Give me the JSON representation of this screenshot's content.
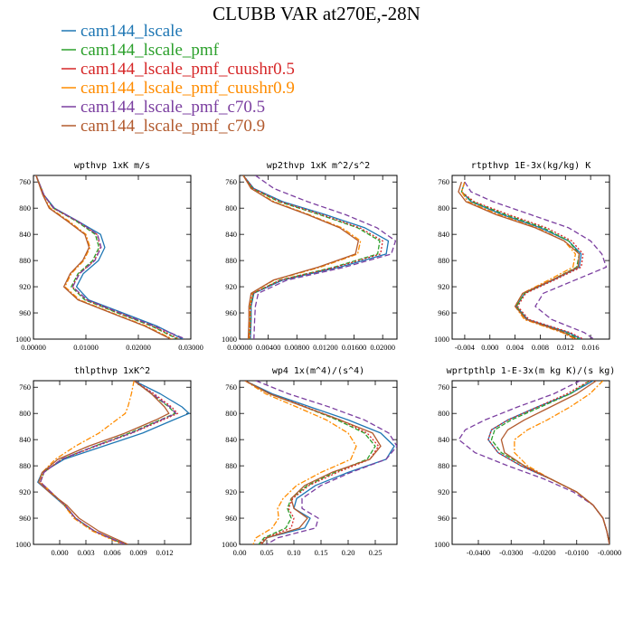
{
  "figure": {
    "title": "CLUBB VAR at270E,-28N"
  },
  "legend": [
    {
      "label": "cam144_lscale",
      "color": "#1f77b4",
      "dash": "none"
    },
    {
      "label": "cam144_lscale_pmf",
      "color": "#2ca02c",
      "dash": "5,2"
    },
    {
      "label": "cam144_lscale_pmf_cuushr0.5",
      "color": "#d62728",
      "dash": "2,2"
    },
    {
      "label": "cam144_lscale_pmf_cuushr0.9",
      "color": "#ff8c00",
      "dash": "6,2,2,2"
    },
    {
      "label": "cam144_lscale_pmf_c70.5",
      "color": "#7b3fa0",
      "dash": "6,3"
    },
    {
      "label": "cam144_lscale_pmf_c70.9",
      "color": "#b25a2e",
      "dash": "none"
    }
  ],
  "chart_data": [
    {
      "type": "line",
      "title": "wpthvp  1xK m/s",
      "xlim": [
        0,
        0.03
      ],
      "ylim": [
        750,
        1000
      ],
      "xticks": [
        0,
        0.01,
        0.02,
        0.03
      ],
      "xticklabels": [
        "0.00000",
        "0.01000",
        "0.02000",
        "0.03000"
      ],
      "yticks": [
        760,
        800,
        840,
        880,
        920,
        960,
        1000
      ],
      "yticklabels": [
        "760",
        "800",
        "840",
        "880",
        "920",
        "960",
        "1000"
      ],
      "levels": [
        750,
        780,
        800,
        820,
        840,
        860,
        880,
        900,
        920,
        940,
        960,
        980,
        1000
      ],
      "series": [
        {
          "name": "cam144_lscale",
          "values": [
            0.0005,
            0.002,
            0.004,
            0.0085,
            0.0128,
            0.0136,
            0.0124,
            0.0095,
            0.0082,
            0.0105,
            0.017,
            0.0235,
            0.0285
          ]
        },
        {
          "name": "cam144_lscale_pmf",
          "values": [
            0.0005,
            0.002,
            0.0038,
            0.0082,
            0.0118,
            0.0125,
            0.0113,
            0.0085,
            0.0072,
            0.0098,
            0.016,
            0.0225,
            0.0275
          ]
        },
        {
          "name": "cam144_lscale_pmf_cuushr0.5",
          "values": [
            0.0005,
            0.002,
            0.0038,
            0.0084,
            0.0121,
            0.0128,
            0.0116,
            0.0087,
            0.0074,
            0.0101,
            0.0163,
            0.0228,
            0.0278
          ]
        },
        {
          "name": "cam144_lscale_pmf_cuushr0.9",
          "values": [
            0.0005,
            0.0018,
            0.0032,
            0.0068,
            0.01,
            0.0108,
            0.0096,
            0.0072,
            0.006,
            0.0088,
            0.015,
            0.0215,
            0.0265
          ]
        },
        {
          "name": "cam144_lscale_pmf_c70.5",
          "values": [
            0.0005,
            0.002,
            0.0039,
            0.0085,
            0.0122,
            0.0129,
            0.0117,
            0.0088,
            0.0075,
            0.0102,
            0.0165,
            0.023,
            0.029
          ]
        },
        {
          "name": "cam144_lscale_pmf_c70.9",
          "values": [
            0.0005,
            0.0018,
            0.003,
            0.0065,
            0.0098,
            0.0106,
            0.0094,
            0.007,
            0.0058,
            0.0085,
            0.0148,
            0.0212,
            0.0262
          ]
        }
      ]
    },
    {
      "type": "line",
      "title": "wp2thvp  1xK m^2/s^2",
      "xlim": [
        0,
        0.022
      ],
      "ylim": [
        750,
        1000
      ],
      "xticks": [
        0,
        0.004,
        0.008,
        0.012,
        0.016,
        0.02
      ],
      "xticklabels": [
        "0.00000",
        "0.00400",
        "0.00800",
        "0.01200",
        "0.01600",
        "0.02000"
      ],
      "yticks": [
        760,
        800,
        840,
        880,
        920,
        960,
        1000
      ],
      "yticklabels": [
        "760",
        "800",
        "840",
        "880",
        "920",
        "960",
        "1000"
      ],
      "levels": [
        750,
        770,
        790,
        810,
        830,
        850,
        870,
        890,
        910,
        930,
        950,
        970,
        1000
      ],
      "series": [
        {
          "name": "cam144_lscale",
          "values": [
            0.0005,
            0.002,
            0.006,
            0.012,
            0.0175,
            0.0208,
            0.0205,
            0.014,
            0.006,
            0.002,
            0.0016,
            0.0016,
            0.0015
          ]
        },
        {
          "name": "cam144_lscale_pmf",
          "values": [
            0.0005,
            0.0018,
            0.0055,
            0.0112,
            0.0165,
            0.0196,
            0.0193,
            0.0132,
            0.0056,
            0.0019,
            0.0015,
            0.0015,
            0.0014
          ]
        },
        {
          "name": "cam144_lscale_pmf_cuushr0.5",
          "values": [
            0.0005,
            0.0019,
            0.0057,
            0.0115,
            0.0168,
            0.02,
            0.0197,
            0.0135,
            0.0057,
            0.0019,
            0.0015,
            0.0015,
            0.0014
          ]
        },
        {
          "name": "cam144_lscale_pmf_cuushr0.9",
          "values": [
            0.0005,
            0.0016,
            0.0048,
            0.0097,
            0.0143,
            0.0169,
            0.0165,
            0.0113,
            0.0048,
            0.0017,
            0.0014,
            0.0014,
            0.0013
          ]
        },
        {
          "name": "cam144_lscale_pmf_c70.5",
          "values": [
            0.0022,
            0.0048,
            0.0095,
            0.0148,
            0.0192,
            0.0218,
            0.0212,
            0.0147,
            0.0066,
            0.0026,
            0.0022,
            0.0021,
            0.002
          ]
        },
        {
          "name": "cam144_lscale_pmf_c70.9",
          "values": [
            0.0005,
            0.0016,
            0.0046,
            0.0095,
            0.014,
            0.0166,
            0.0162,
            0.011,
            0.0047,
            0.0016,
            0.0013,
            0.0013,
            0.0012
          ]
        }
      ]
    },
    {
      "type": "line",
      "title": "rtpthvp  1E-3x(kg/kg) K",
      "xlim": [
        -0.006,
        0.019
      ],
      "ylim": [
        750,
        1000
      ],
      "xticks": [
        -0.004,
        0,
        0.004,
        0.008,
        0.012,
        0.016
      ],
      "xticklabels": [
        "-0.004",
        "0.000",
        "0.004",
        "0.008",
        "0.012",
        "0.016"
      ],
      "yticks": [
        760,
        800,
        840,
        880,
        920,
        960,
        1000
      ],
      "yticklabels": [
        "760",
        "800",
        "840",
        "880",
        "920",
        "960",
        "1000"
      ],
      "levels": [
        760,
        775,
        790,
        810,
        830,
        850,
        870,
        890,
        910,
        930,
        950,
        970,
        990,
        1000
      ],
      "series": [
        {
          "name": "cam144_lscale",
          "values": [
            -0.004,
            -0.0045,
            -0.003,
            0.002,
            0.008,
            0.0125,
            0.0145,
            0.0142,
            0.01,
            0.0055,
            0.0042,
            0.006,
            0.0125,
            0.0145
          ]
        },
        {
          "name": "cam144_lscale_pmf",
          "values": [
            -0.004,
            -0.0045,
            -0.0028,
            0.0025,
            0.0085,
            0.0125,
            0.0142,
            0.0138,
            0.0098,
            0.0055,
            0.0042,
            0.0058,
            0.012,
            0.0142
          ]
        },
        {
          "name": "cam144_lscale_pmf_cuushr0.5",
          "values": [
            -0.004,
            -0.0045,
            -0.0025,
            0.003,
            0.009,
            0.013,
            0.0148,
            0.0145,
            0.0102,
            0.0057,
            0.0044,
            0.0062,
            0.0128,
            0.0148
          ]
        },
        {
          "name": "cam144_lscale_pmf_cuushr0.9",
          "values": [
            -0.004,
            -0.0045,
            -0.0035,
            0.0015,
            0.0075,
            0.0118,
            0.0136,
            0.0132,
            0.0093,
            0.0052,
            0.004,
            0.0055,
            0.0115,
            0.0135
          ]
        },
        {
          "name": "cam144_lscale_pmf_c70.5",
          "values": [
            -0.004,
            -0.003,
            0.0005,
            0.0065,
            0.0125,
            0.016,
            0.0178,
            0.0185,
            0.0135,
            0.0085,
            0.0072,
            0.0098,
            0.015,
            0.0165
          ]
        },
        {
          "name": "cam144_lscale_pmf_c70.9",
          "values": [
            -0.0045,
            -0.005,
            -0.0038,
            0.001,
            0.0072,
            0.0118,
            0.0142,
            0.014,
            0.0098,
            0.0052,
            0.004,
            0.0058,
            0.0118,
            0.0138
          ]
        }
      ]
    },
    {
      "type": "line",
      "title": "thlpthvp  1xK^2",
      "xlim": [
        -0.003,
        0.015
      ],
      "ylim": [
        750,
        1000
      ],
      "xticks": [
        0,
        0.003,
        0.006,
        0.009,
        0.012
      ],
      "xticklabels": [
        "0.000",
        "0.003",
        "0.006",
        "0.009",
        "0.012"
      ],
      "yticks": [
        760,
        800,
        840,
        880,
        920,
        960,
        1000
      ],
      "yticklabels": [
        "760",
        "800",
        "840",
        "880",
        "920",
        "960",
        "1000"
      ],
      "levels": [
        750,
        770,
        790,
        800,
        810,
        830,
        850,
        870,
        890,
        905,
        920,
        940,
        960,
        980,
        1000
      ],
      "series": [
        {
          "name": "cam144_lscale",
          "values": [
            0.0085,
            0.0115,
            0.014,
            0.0148,
            0.013,
            0.0095,
            0.005,
            0.0005,
            -0.002,
            -0.0025,
            -0.0012,
            0.0005,
            0.0018,
            0.004,
            0.0075
          ]
        },
        {
          "name": "cam144_lscale_pmf",
          "values": [
            0.0085,
            0.0105,
            0.0125,
            0.0132,
            0.0115,
            0.008,
            0.004,
            0.0002,
            -0.0018,
            -0.0022,
            -0.001,
            0.0006,
            0.0018,
            0.004,
            0.0074
          ]
        },
        {
          "name": "cam144_lscale_pmf_cuushr0.5",
          "values": [
            0.0085,
            0.0108,
            0.0128,
            0.0135,
            0.0118,
            0.0083,
            0.0042,
            0.0002,
            -0.0018,
            -0.0022,
            -0.001,
            0.0006,
            0.0018,
            0.004,
            0.0075
          ]
        },
        {
          "name": "cam144_lscale_pmf_cuushr0.9",
          "values": [
            0.0085,
            0.0082,
            0.0078,
            0.0075,
            0.0065,
            0.0045,
            0.0018,
            -0.0005,
            -0.002,
            -0.0022,
            -0.001,
            0.0005,
            0.0016,
            0.0038,
            0.0072
          ]
        },
        {
          "name": "cam144_lscale_pmf_c70.5",
          "values": [
            0.0085,
            0.0106,
            0.0126,
            0.0133,
            0.0116,
            0.0082,
            0.004,
            0.0002,
            -0.0018,
            -0.0022,
            -0.001,
            0.0006,
            0.0018,
            0.004,
            0.0074
          ]
        },
        {
          "name": "cam144_lscale_pmf_c70.9",
          "values": [
            0.0085,
            0.0105,
            0.012,
            0.0125,
            0.011,
            0.0075,
            0.0033,
            -0.0002,
            -0.002,
            -0.0024,
            -0.0012,
            0.0008,
            0.0022,
            0.0045,
            0.0078
          ]
        }
      ]
    },
    {
      "type": "line",
      "title": "wp4  1x(m^4)/(s^4)",
      "xlim": [
        0,
        0.29
      ],
      "ylim": [
        750,
        1000
      ],
      "xticks": [
        0,
        0.05,
        0.1,
        0.15,
        0.2,
        0.25
      ],
      "xticklabels": [
        "0.00",
        "0.05",
        "0.10",
        "0.15",
        "0.20",
        "0.25"
      ],
      "yticks": [
        760,
        800,
        840,
        880,
        920,
        960,
        1000
      ],
      "yticklabels": [
        "760",
        "800",
        "840",
        "880",
        "920",
        "960",
        "1000"
      ],
      "levels": [
        750,
        770,
        790,
        810,
        830,
        850,
        870,
        890,
        910,
        930,
        945,
        960,
        975,
        990,
        1000
      ],
      "series": [
        {
          "name": "cam144_lscale",
          "values": [
            0.01,
            0.06,
            0.13,
            0.2,
            0.26,
            0.285,
            0.27,
            0.2,
            0.14,
            0.105,
            0.1,
            0.13,
            0.12,
            0.05,
            0.04
          ]
        },
        {
          "name": "cam144_lscale_pmf",
          "values": [
            0.01,
            0.055,
            0.12,
            0.18,
            0.23,
            0.25,
            0.235,
            0.175,
            0.125,
            0.095,
            0.088,
            0.095,
            0.085,
            0.045,
            0.035
          ]
        },
        {
          "name": "cam144_lscale_pmf_cuushr0.5",
          "values": [
            0.01,
            0.056,
            0.122,
            0.185,
            0.235,
            0.256,
            0.24,
            0.18,
            0.128,
            0.098,
            0.09,
            0.1,
            0.095,
            0.048,
            0.037
          ]
        },
        {
          "name": "cam144_lscale_pmf_cuushr0.9",
          "values": [
            0.01,
            0.048,
            0.105,
            0.16,
            0.2,
            0.215,
            0.205,
            0.15,
            0.105,
            0.08,
            0.07,
            0.072,
            0.06,
            0.03,
            0.025
          ]
        },
        {
          "name": "cam144_lscale_pmf_c70.5",
          "values": [
            0.03,
            0.09,
            0.165,
            0.23,
            0.275,
            0.29,
            0.27,
            0.205,
            0.15,
            0.115,
            0.115,
            0.145,
            0.14,
            0.07,
            0.05
          ]
        },
        {
          "name": "cam144_lscale_pmf_c70.9",
          "values": [
            0.01,
            0.055,
            0.12,
            0.185,
            0.245,
            0.26,
            0.24,
            0.17,
            0.12,
            0.095,
            0.1,
            0.125,
            0.11,
            0.05,
            0.04
          ]
        }
      ]
    },
    {
      "type": "line",
      "title": "wprtpthlp  1-E-3x(m kg K)/(s kg)",
      "xlim": [
        -0.048,
        0
      ],
      "ylim": [
        750,
        1000
      ],
      "xticks": [
        -0.04,
        -0.03,
        -0.02,
        -0.01,
        0
      ],
      "xticklabels": [
        "-0.0400",
        "-0.0300",
        "-0.0200",
        "-0.0100",
        "-0.0000"
      ],
      "yticks": [
        760,
        800,
        840,
        880,
        920,
        960,
        1000
      ],
      "yticklabels": [
        "760",
        "800",
        "840",
        "880",
        "920",
        "960",
        "1000"
      ],
      "levels": [
        750,
        770,
        790,
        810,
        825,
        840,
        860,
        880,
        900,
        920,
        940,
        960,
        980,
        1000
      ],
      "series": [
        {
          "name": "cam144_lscale",
          "values": [
            -0.005,
            -0.012,
            -0.022,
            -0.031,
            -0.036,
            -0.037,
            -0.034,
            -0.027,
            -0.018,
            -0.01,
            -0.005,
            -0.002,
            -0.0008,
            0
          ]
        },
        {
          "name": "cam144_lscale_pmf",
          "values": [
            -0.006,
            -0.012,
            -0.021,
            -0.03,
            -0.035,
            -0.036,
            -0.033,
            -0.026,
            -0.018,
            -0.01,
            -0.005,
            -0.002,
            -0.0008,
            0
          ]
        },
        {
          "name": "cam144_lscale_pmf_cuushr0.5",
          "values": [
            -0.006,
            -0.013,
            -0.022,
            -0.031,
            -0.036,
            -0.037,
            -0.034,
            -0.027,
            -0.018,
            -0.01,
            -0.005,
            -0.002,
            -0.0008,
            0
          ]
        },
        {
          "name": "cam144_lscale_pmf_cuushr0.9",
          "values": [
            -0.002,
            -0.006,
            -0.012,
            -0.019,
            -0.025,
            -0.029,
            -0.029,
            -0.025,
            -0.018,
            -0.01,
            -0.005,
            -0.002,
            -0.0008,
            0
          ]
        },
        {
          "name": "cam144_lscale_pmf_c70.5",
          "values": [
            -0.009,
            -0.017,
            -0.028,
            -0.038,
            -0.044,
            -0.046,
            -0.041,
            -0.031,
            -0.02,
            -0.011,
            -0.005,
            -0.002,
            -0.0008,
            0
          ]
        },
        {
          "name": "cam144_lscale_pmf_c70.9",
          "values": [
            -0.004,
            -0.01,
            -0.018,
            -0.026,
            -0.031,
            -0.033,
            -0.032,
            -0.026,
            -0.018,
            -0.01,
            -0.005,
            -0.002,
            -0.0008,
            0
          ]
        }
      ]
    }
  ]
}
